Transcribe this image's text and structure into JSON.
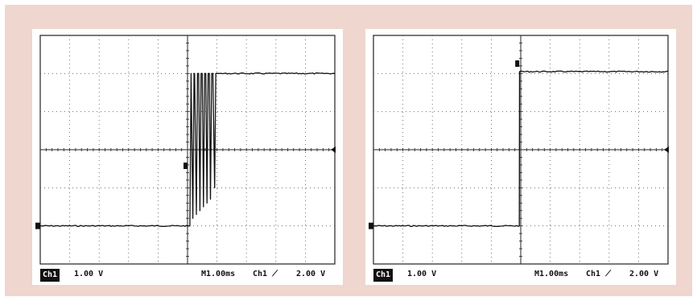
{
  "chart_data": [
    {
      "type": "line",
      "x_divisions": 10,
      "y_divisions": 6,
      "series": [
        {
          "x": [
            0,
            5.0,
            5.08,
            5.12,
            5.18,
            5.22,
            5.24,
            5.3,
            5.34,
            5.38,
            5.42,
            5.46,
            5.5,
            5.54,
            5.58,
            5.62,
            5.66,
            5.7,
            5.74,
            5.78,
            5.82,
            5.86,
            5.92,
            5.96,
            6.02,
            6.08,
            10
          ],
          "y": [
            -2.0,
            -2.0,
            -2.0,
            2.0,
            -1.8,
            2.0,
            2.0,
            -1.7,
            2.0,
            2.0,
            -1.6,
            2.0,
            2.0,
            -1.5,
            2.0,
            2.0,
            -1.4,
            2.0,
            2.0,
            -1.3,
            2.0,
            2.0,
            -1.0,
            2.0,
            2.0,
            2.0,
            2.0
          ]
        }
      ],
      "readout": {
        "channel": "Ch1",
        "volts_per_div": "1.00 V",
        "time_per_div": "M1.00ms",
        "trigger_source": "Ch1",
        "trigger_level": "2.00 V"
      }
    },
    {
      "type": "line",
      "x_divisions": 10,
      "y_divisions": 6,
      "series": [
        {
          "x": [
            0,
            4.95,
            4.96,
            10
          ],
          "y": [
            -2.0,
            -2.0,
            2.05,
            2.05
          ]
        }
      ],
      "readout": {
        "channel": "Ch1",
        "volts_per_div": "1.00 V",
        "time_per_div": "M1.00ms",
        "trigger_source": "Ch1",
        "trigger_level": "2.00 V"
      }
    }
  ]
}
